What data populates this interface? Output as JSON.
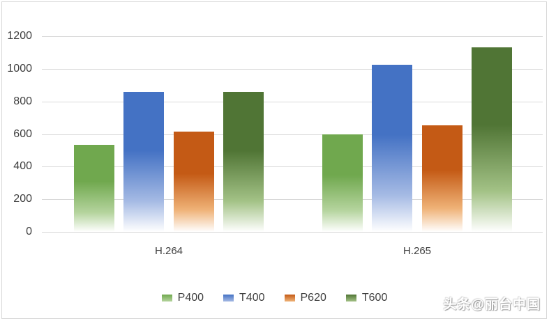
{
  "chart_data": {
    "type": "bar",
    "title": "",
    "xlabel": "",
    "ylabel": "",
    "categories": [
      "H.264",
      "H.265"
    ],
    "series": [
      {
        "name": "P400",
        "color": "#70A84E",
        "color_mid": "#B5D49E",
        "values": [
          535,
          600
        ]
      },
      {
        "name": "T400",
        "color": "#4472C4",
        "color_mid": "#A5BAE4",
        "values": [
          860,
          1025
        ]
      },
      {
        "name": "P620",
        "color": "#C45A15",
        "color_mid": "#EFB277",
        "values": [
          615,
          655
        ]
      },
      {
        "name": "T600",
        "color": "#507535",
        "color_mid": "#A3C286",
        "values": [
          860,
          1130
        ]
      }
    ],
    "ylim": [
      0,
      1200
    ],
    "ytick_step": 200,
    "y_tick_labels": [
      "1200",
      "1000",
      "800",
      "600",
      "400",
      "200",
      "0"
    ],
    "grid": true,
    "legend_position": "bottom",
    "bar_fill": "vertical gradient, solid color at top fading to white at base"
  },
  "colors": {
    "grid": "#D9D9D9",
    "frame_border": "#D9D9D9",
    "axis_text": "#3F3F3F",
    "background": "#FFFFFF",
    "gradient_fade_to": "#FFFFFF"
  },
  "watermark": {
    "text": "头条@丽台中国"
  }
}
